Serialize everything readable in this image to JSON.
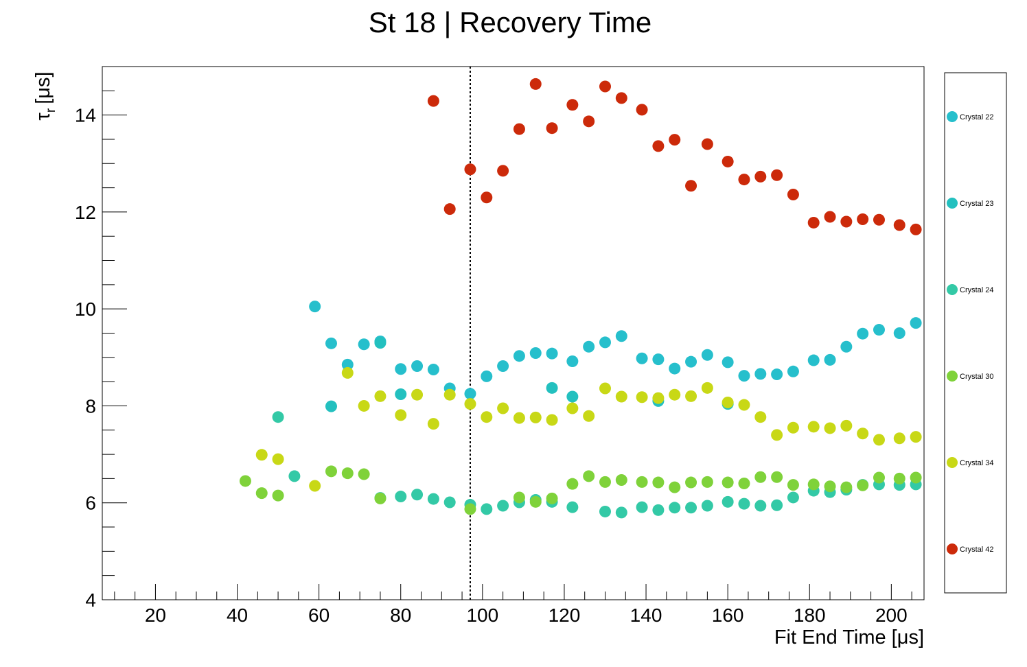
{
  "chart_data": {
    "type": "scatter",
    "title": "St 18 | Recovery Time",
    "xlabel": "Fit End Time [μs]",
    "ylabel_main": "τ",
    "ylabel_sub": "r",
    "ylabel_unit": "[μs]",
    "xlim": [
      7,
      208
    ],
    "ylim": [
      4,
      15
    ],
    "xticks": [
      20,
      40,
      60,
      80,
      100,
      120,
      140,
      160,
      180,
      200
    ],
    "yticks": [
      4,
      6,
      8,
      10,
      12,
      14
    ],
    "reference_line_x": 97,
    "legend_position": "right",
    "series": [
      {
        "name": "Crystal 22",
        "color": "#26bfcc",
        "x": [
          59,
          63,
          67,
          71,
          75,
          80,
          84,
          88,
          92,
          97,
          101,
          105,
          109,
          113,
          117,
          122,
          126,
          130,
          134,
          139,
          143,
          147,
          151,
          155,
          160,
          164,
          168,
          172,
          176,
          181,
          185,
          189,
          193,
          197,
          202,
          206
        ],
        "y": [
          10.05,
          9.29,
          8.85,
          9.27,
          9.33,
          8.76,
          8.82,
          8.75,
          8.36,
          8.25,
          8.61,
          8.82,
          9.03,
          9.09,
          9.08,
          8.92,
          9.22,
          9.31,
          9.44,
          8.98,
          8.96,
          8.77,
          8.91,
          9.05,
          8.9,
          8.62,
          8.66,
          8.65,
          8.71,
          8.94,
          8.95,
          9.22,
          9.49,
          9.57,
          9.5,
          9.71
        ]
      },
      {
        "name": "Crystal 23",
        "color": "#23c0bf",
        "x": [
          63,
          75,
          80,
          117,
          122,
          143,
          160
        ],
        "y": [
          7.99,
          9.3,
          8.24,
          8.37,
          8.19,
          8.1,
          8.04
        ]
      },
      {
        "name": "Crystal 24",
        "color": "#33c9a6",
        "x": [
          50,
          54,
          75,
          80,
          84,
          88,
          92,
          97,
          101,
          105,
          109,
          113,
          117,
          122,
          130,
          134,
          139,
          143,
          147,
          151,
          155,
          160,
          164,
          168,
          172,
          176,
          181,
          185,
          189,
          193,
          197,
          202,
          206
        ],
        "y": [
          7.77,
          6.55,
          6.1,
          6.13,
          6.17,
          6.08,
          6.01,
          5.96,
          5.87,
          5.94,
          6.01,
          6.06,
          6.02,
          5.91,
          5.82,
          5.8,
          5.91,
          5.85,
          5.9,
          5.9,
          5.94,
          6.02,
          5.98,
          5.94,
          5.95,
          6.11,
          6.25,
          6.22,
          6.27,
          6.37,
          6.38,
          6.37,
          6.38
        ]
      },
      {
        "name": "Crystal 30",
        "color": "#7fd23a",
        "x": [
          42,
          46,
          50,
          63,
          67,
          71,
          75,
          97,
          109,
          113,
          117,
          122,
          126,
          130,
          134,
          139,
          143,
          147,
          151,
          155,
          160,
          164,
          168,
          172,
          176,
          181,
          185,
          189,
          193,
          197,
          202,
          206
        ],
        "y": [
          6.45,
          6.2,
          6.15,
          6.65,
          6.61,
          6.59,
          6.09,
          5.87,
          6.11,
          6.02,
          6.09,
          6.39,
          6.55,
          6.43,
          6.47,
          6.43,
          6.42,
          6.32,
          6.42,
          6.43,
          6.42,
          6.4,
          6.53,
          6.53,
          6.37,
          6.38,
          6.34,
          6.32,
          6.36,
          6.52,
          6.5,
          6.52
        ]
      },
      {
        "name": "Crystal 34",
        "color": "#c8d816",
        "x": [
          46,
          50,
          59,
          67,
          71,
          75,
          80,
          84,
          88,
          92,
          97,
          101,
          105,
          109,
          113,
          117,
          122,
          126,
          130,
          134,
          139,
          143,
          147,
          151,
          155,
          160,
          164,
          168,
          172,
          176,
          181,
          185,
          189,
          193,
          197,
          202,
          206
        ],
        "y": [
          6.99,
          6.9,
          6.35,
          8.68,
          8.0,
          8.2,
          7.81,
          8.23,
          7.63,
          8.23,
          8.04,
          7.77,
          7.95,
          7.75,
          7.76,
          7.71,
          7.95,
          7.79,
          8.36,
          8.19,
          8.18,
          8.16,
          8.23,
          8.2,
          8.37,
          8.07,
          8.02,
          7.77,
          7.4,
          7.55,
          7.57,
          7.54,
          7.59,
          7.43,
          7.3,
          7.33,
          7.36
        ]
      },
      {
        "name": "Crystal 42",
        "color": "#cc2a0a",
        "x": [
          88,
          92,
          97,
          101,
          105,
          109,
          113,
          117,
          122,
          126,
          130,
          134,
          139,
          143,
          147,
          151,
          155,
          160,
          164,
          168,
          172,
          176,
          181,
          185,
          189,
          193,
          197,
          202,
          206
        ],
        "y": [
          14.29,
          12.06,
          12.88,
          12.3,
          12.85,
          13.71,
          14.64,
          13.73,
          14.21,
          13.87,
          14.59,
          14.35,
          14.11,
          13.36,
          13.49,
          12.54,
          13.4,
          13.04,
          12.67,
          12.73,
          12.76,
          12.36,
          11.78,
          11.9,
          11.8,
          11.85,
          11.84,
          11.73,
          11.64
        ]
      }
    ]
  }
}
